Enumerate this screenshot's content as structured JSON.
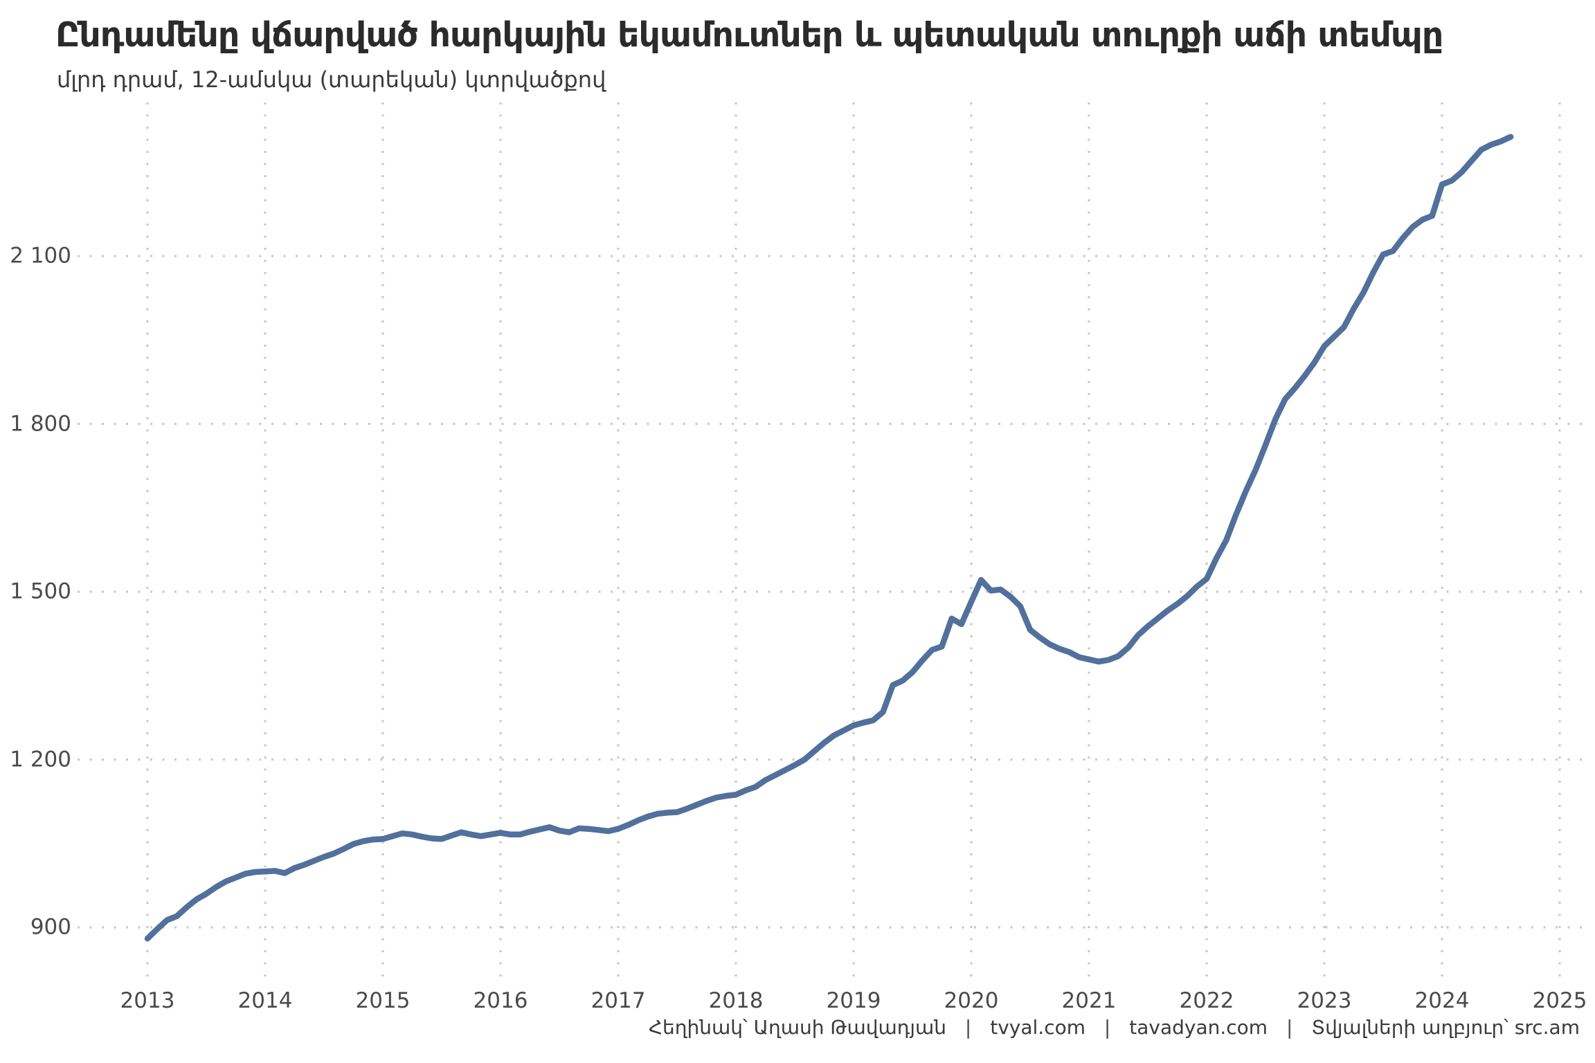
{
  "header": {
    "title": "Ընդամենը վճարված հարկային եկամուտներ և պետական տուրքի աճի տեմպը",
    "subtitle": "մլրդ դրամ, 12-ամսկա (տարեկան) կտրվածքով"
  },
  "footer": {
    "credit": "Հեղինակ՝ Աղասի Թավադյան",
    "link1": "tvyal.com",
    "link2": "tavadyan.com",
    "source": "Տվյալների աղբյուր՝ src.am",
    "separator": "|"
  },
  "chart_data": {
    "type": "line",
    "title": "Ընդամենը վճարված հարկային եկամուտներ և պետական տուրքի աճի տեմպը",
    "subtitle": "մլրդ դրամ, 12-ամսկա (տարեկան) կտրվածքով",
    "xlabel": "",
    "ylabel": "մլրդ դրամ",
    "x_ticks": [
      2013,
      2014,
      2015,
      2016,
      2017,
      2018,
      2019,
      2020,
      2021,
      2022,
      2023,
      2024,
      2025
    ],
    "y_ticks": [
      900,
      1200,
      1500,
      1800,
      2100
    ],
    "y_tick_labels": [
      "900",
      "1 200",
      "1 500",
      "1 800",
      "2 100"
    ],
    "ylim": [
      820,
      2380
    ],
    "xlim": [
      2013,
      2025
    ],
    "grid": "dotted",
    "legend_position": "none",
    "line_color": "#51709c",
    "grid_color": "#c9c9c9",
    "series": [
      {
        "name": "Ընդամենը հարկային եկամուտներ և պետական տուրք",
        "start": "2013-01",
        "end": "2024-08",
        "frequency": "monthly",
        "values": [
          880,
          897,
          913,
          920,
          936,
          950,
          960,
          972,
          982,
          989,
          996,
          999,
          1000,
          1001,
          997,
          1006,
          1012,
          1019,
          1026,
          1032,
          1040,
          1049,
          1054,
          1057,
          1058,
          1063,
          1068,
          1066,
          1062,
          1059,
          1058,
          1064,
          1070,
          1066,
          1063,
          1066,
          1069,
          1066,
          1066,
          1071,
          1075,
          1079,
          1073,
          1070,
          1077,
          1076,
          1074,
          1072,
          1076,
          1083,
          1091,
          1098,
          1103,
          1105,
          1106,
          1112,
          1119,
          1126,
          1132,
          1135,
          1137,
          1145,
          1151,
          1163,
          1172,
          1181,
          1190,
          1200,
          1215,
          1230,
          1243,
          1252,
          1261,
          1266,
          1270,
          1285,
          1333,
          1341,
          1356,
          1377,
          1396,
          1402,
          1452,
          1442,
          1482,
          1521,
          1502,
          1504,
          1491,
          1474,
          1432,
          1418,
          1406,
          1398,
          1392,
          1383,
          1379,
          1375,
          1378,
          1385,
          1400,
          1422,
          1438,
          1452,
          1466,
          1478,
          1492,
          1509,
          1523,
          1560,
          1592,
          1638,
          1680,
          1718,
          1762,
          1808,
          1844,
          1864,
          1886,
          1910,
          1939,
          1956,
          1973,
          2006,
          2035,
          2071,
          2103,
          2109,
          2132,
          2152,
          2165,
          2172,
          2228,
          2235,
          2250,
          2270,
          2290,
          2299,
          2305,
          2313
        ]
      }
    ]
  }
}
